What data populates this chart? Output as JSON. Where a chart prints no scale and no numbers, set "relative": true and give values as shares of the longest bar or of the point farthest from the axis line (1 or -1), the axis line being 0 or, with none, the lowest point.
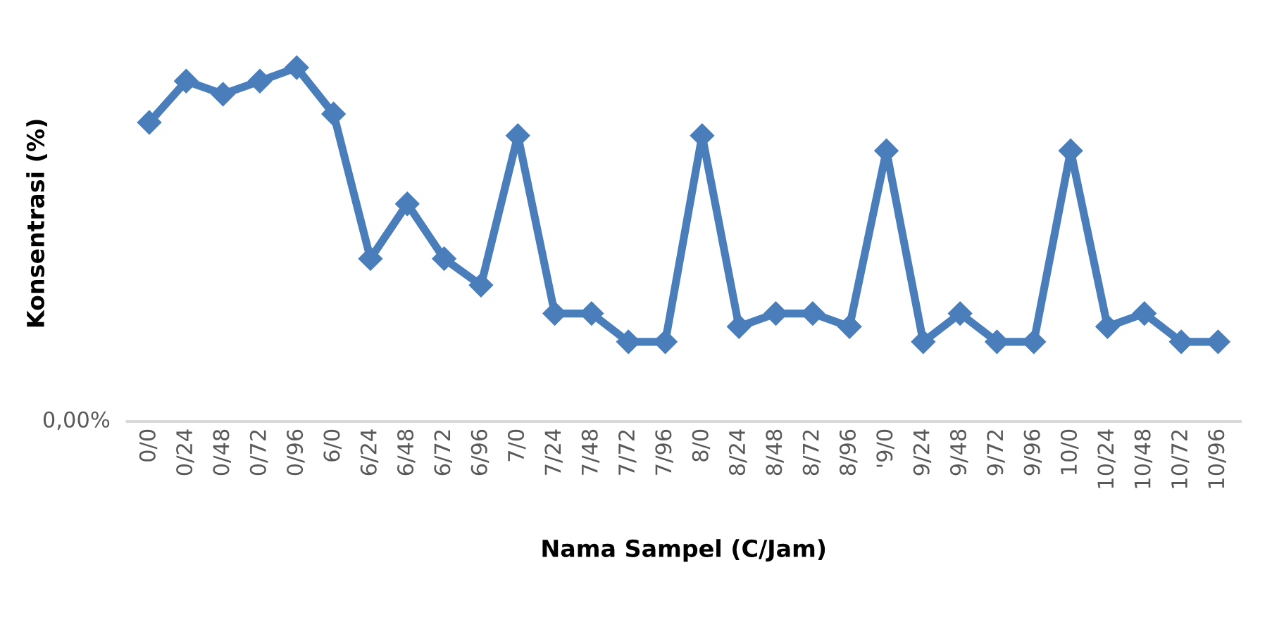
{
  "chart_data": {
    "type": "line",
    "relative": true,
    "xlabel": "Nama Sampel (C/Jam)",
    "ylabel": "Konsentrasi (%)",
    "annotations": [
      "0,00%"
    ],
    "categories": [
      "0/0",
      "0/24",
      "0/48",
      "0/72",
      "0/96",
      "6/0",
      "6/24",
      "6/48",
      "6/72",
      "6/96",
      "7/0",
      "7/24",
      "7/48",
      "7/72",
      "7/96",
      "8/0",
      "8/24",
      "8/48",
      "8/72",
      "8/96",
      "'9/0",
      "9/24",
      "9/48",
      "9/72",
      "9/96",
      "10/0",
      "10/24",
      "10/48",
      "10/72",
      "10/96"
    ],
    "series": [
      {
        "color": "#4a7ebb",
        "values": [
          0.845,
          0.962,
          0.925,
          0.962,
          1,
          0.869,
          0.46,
          0.615,
          0.46,
          0.385,
          0.808,
          0.305,
          0.305,
          0.225,
          0.225,
          0.808,
          0.268,
          0.305,
          0.305,
          0.268,
          0.765,
          0.225,
          0.305,
          0.225,
          0.225,
          0.765,
          0.268,
          0.305,
          0.225,
          0.225
        ]
      }
    ],
    "marker": "diamond",
    "legend": false
  }
}
